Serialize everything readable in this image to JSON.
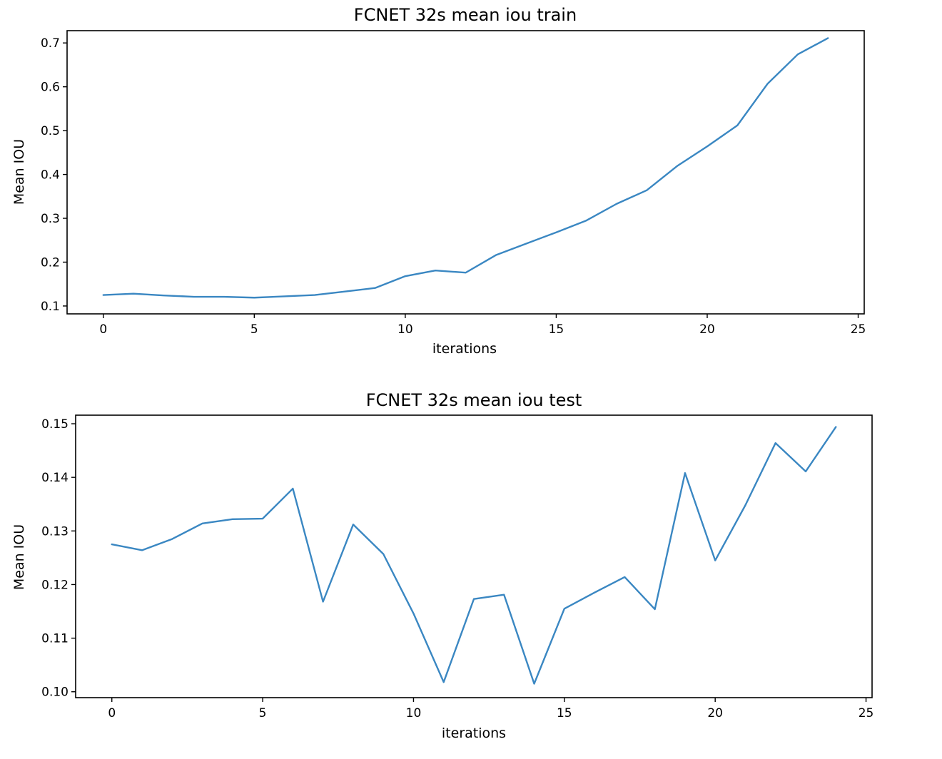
{
  "chart_data": [
    {
      "type": "line",
      "title": "FCNET 32s mean iou train",
      "xlabel": "iterations",
      "ylabel": "Mean IOU",
      "xlim": [
        -1.2,
        25.2
      ],
      "ylim": [
        0.082,
        0.728
      ],
      "xticks": [
        0,
        5,
        10,
        15,
        20,
        25
      ],
      "yticks": [
        0.1,
        0.2,
        0.3,
        0.4,
        0.5,
        0.6,
        0.7
      ],
      "ytick_labels": [
        "0.1",
        "0.2",
        "0.3",
        "0.4",
        "0.5",
        "0.6",
        "0.7"
      ],
      "grid": false,
      "series": [
        {
          "name": "train",
          "color": "#3a87c2",
          "x": [
            0,
            1,
            2,
            3,
            4,
            5,
            6,
            7,
            8,
            9,
            10,
            11,
            12,
            13,
            14,
            15,
            16,
            17,
            18,
            19,
            20,
            21,
            22,
            23,
            24
          ],
          "values": [
            0.125,
            0.128,
            0.124,
            0.121,
            0.121,
            0.119,
            0.122,
            0.125,
            0.133,
            0.141,
            0.168,
            0.181,
            0.176,
            0.216,
            0.242,
            0.268,
            0.295,
            0.333,
            0.364,
            0.419,
            0.464,
            0.512,
            0.607,
            0.674,
            0.711
          ]
        }
      ]
    },
    {
      "type": "line",
      "title": "FCNET 32s mean iou test",
      "xlabel": "iterations",
      "ylabel": "Mean IOU",
      "xlim": [
        -1.2,
        25.2
      ],
      "ylim": [
        0.0989,
        0.1516
      ],
      "xticks": [
        0,
        5,
        10,
        15,
        20,
        25
      ],
      "yticks": [
        0.1,
        0.11,
        0.12,
        0.13,
        0.14,
        0.15
      ],
      "ytick_labels": [
        "0.10",
        "0.11",
        "0.12",
        "0.13",
        "0.14",
        "0.15"
      ],
      "grid": false,
      "series": [
        {
          "name": "test",
          "color": "#3a87c2",
          "x": [
            0,
            1,
            2,
            3,
            4,
            5,
            6,
            7,
            8,
            9,
            10,
            11,
            12,
            13,
            14,
            15,
            16,
            17,
            18,
            19,
            20,
            21,
            22,
            23,
            24
          ],
          "values": [
            0.1275,
            0.1264,
            0.1285,
            0.1314,
            0.1322,
            0.1323,
            0.1379,
            0.1168,
            0.1312,
            0.1257,
            0.1146,
            0.1018,
            0.1173,
            0.1181,
            0.1015,
            0.1155,
            0.1185,
            0.1214,
            0.1154,
            0.1408,
            0.1245,
            0.1348,
            0.1464,
            0.1411,
            0.1494
          ]
        }
      ]
    }
  ]
}
